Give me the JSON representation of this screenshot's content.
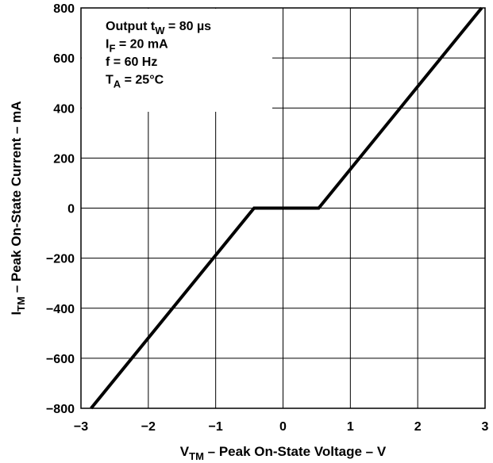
{
  "chart_data": {
    "type": "line",
    "xlabel": {
      "main": "V",
      "sub": "TM",
      "rest": " – Peak On-State Voltage – V"
    },
    "ylabel": {
      "main": "I",
      "sub": "TM",
      "rest": " – Peak On-State Current – mA"
    },
    "xlim": [
      -3,
      3
    ],
    "ylim": [
      -800,
      800
    ],
    "x_ticks": [
      -3,
      -2,
      -1,
      0,
      1,
      2,
      3
    ],
    "x_tick_labels": [
      "−3",
      "−2",
      "−1",
      "0",
      "1",
      "2",
      "3"
    ],
    "y_ticks": [
      -800,
      -600,
      -400,
      -200,
      0,
      200,
      400,
      600,
      800
    ],
    "y_tick_labels": [
      "−800",
      "−600",
      "−400",
      "−200",
      "0",
      "200",
      "400",
      "600",
      "800"
    ],
    "grid": true,
    "series": [
      {
        "x": [
          -2.85,
          -0.43,
          0.53,
          2.95
        ],
        "y": [
          -800,
          0,
          0,
          800
        ]
      }
    ],
    "annotations": [
      {
        "main": "Output t",
        "sub": "W",
        "rest": " = 80 µs"
      },
      {
        "main": "I",
        "sub": "F",
        "rest": " = 20 mA"
      },
      {
        "main": "f = 60 Hz",
        "sub": "",
        "rest": ""
      },
      {
        "main": "T",
        "sub": "A",
        "rest": " = 25°C"
      }
    ]
  }
}
